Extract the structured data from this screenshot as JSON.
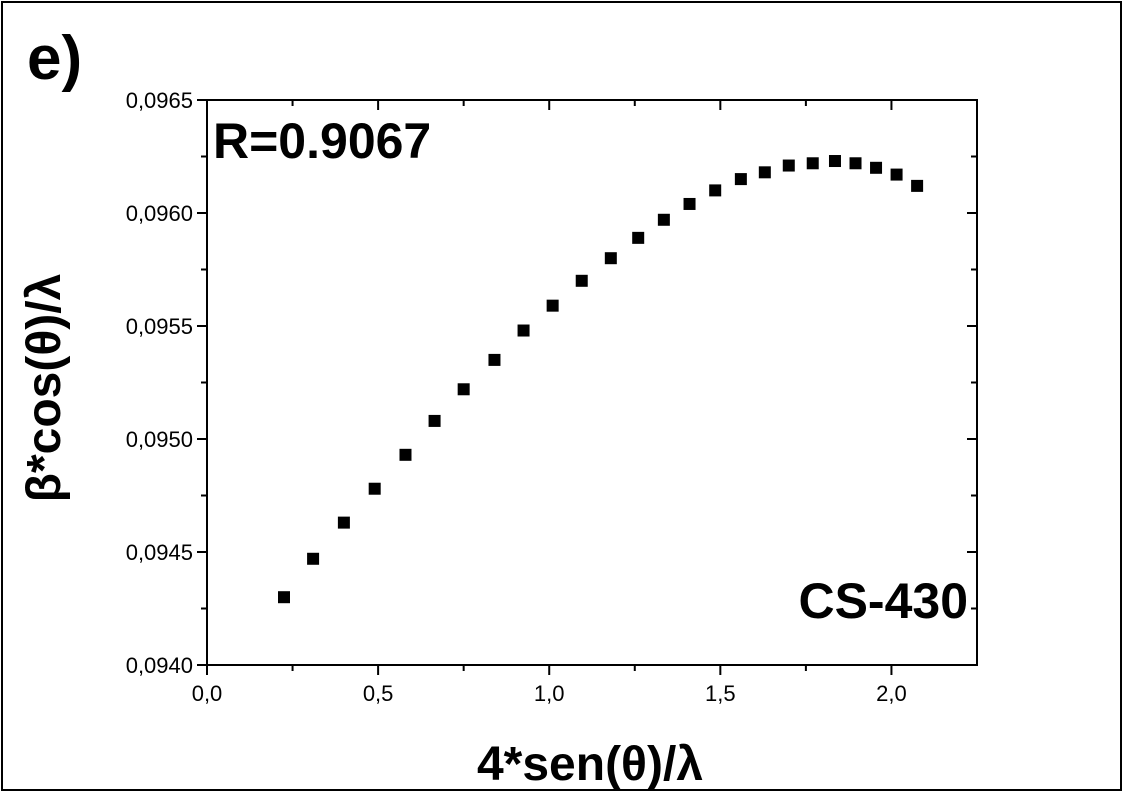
{
  "panel_label": "e)",
  "chart_data": {
    "type": "scatter",
    "xlabel": "4*sen(θ)/λ",
    "ylabel": "β*cos(θ)/λ",
    "xlim": [
      0,
      2.25
    ],
    "ylim": [
      0.094,
      0.0965
    ],
    "x_ticks": [
      0,
      0.5,
      1.0,
      1.5,
      2.0
    ],
    "x_tick_labels": [
      "0,0",
      "0,5",
      "1,0",
      "1,5",
      "2,0"
    ],
    "y_ticks": [
      0.094,
      0.0945,
      0.095,
      0.0955,
      0.096,
      0.0965
    ],
    "y_tick_labels": [
      "0,0940",
      "0,0945",
      "0,0950",
      "0,0955",
      "0,0960",
      "0,0965"
    ],
    "grid": false,
    "annotations": [
      "R=0.9067",
      "CS-430"
    ],
    "marker_color": "#000000",
    "series": [
      {
        "marker": "square",
        "x": [
          0.225,
          0.31,
          0.4,
          0.49,
          0.58,
          0.665,
          0.75,
          0.84,
          0.925,
          1.01,
          1.095,
          1.18,
          1.26,
          1.335,
          1.41,
          1.485,
          1.56,
          1.63,
          1.7,
          1.77,
          1.835,
          1.895,
          1.955,
          2.015,
          2.075
        ],
        "y": [
          0.0943,
          0.09447,
          0.09463,
          0.09478,
          0.09493,
          0.09508,
          0.09522,
          0.09535,
          0.09548,
          0.09559,
          0.0957,
          0.0958,
          0.09589,
          0.09597,
          0.09604,
          0.0961,
          0.09615,
          0.09618,
          0.09621,
          0.09622,
          0.09623,
          0.09622,
          0.0962,
          0.09617,
          0.09612
        ]
      }
    ]
  }
}
